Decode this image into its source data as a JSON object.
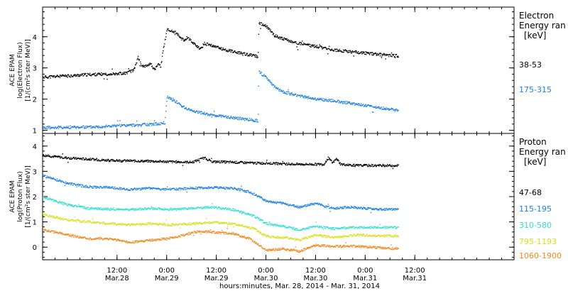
{
  "chart_data": {
    "type": "scatter",
    "x_axis": {
      "label": "hours:minutes, Mar. 28, 2014 - Mar. 31, 2014",
      "range_hours": [
        -6,
        108
      ],
      "ticks": [
        {
          "t": 12,
          "time": "12:00",
          "date": "Mar.28"
        },
        {
          "t": 24,
          "time": "0:00",
          "date": "Mar.29"
        },
        {
          "t": 36,
          "time": "12:00",
          "date": "Mar.29"
        },
        {
          "t": 48,
          "time": "0:00",
          "date": "Mar.30"
        },
        {
          "t": 60,
          "time": "12:00",
          "date": "Mar.30"
        },
        {
          "t": 72,
          "time": "0:00",
          "date": "Mar.31"
        },
        {
          "t": 84,
          "time": "12:00",
          "date": "Mar.31"
        }
      ]
    },
    "panels": [
      {
        "ylabel": [
          "ACE EPAM",
          "log(Electron Flux)",
          "[1/(cm²s ster MeV)]"
        ],
        "ylim": [
          0.9,
          4.95
        ],
        "yticks": [
          "1",
          "2",
          "3",
          "4"
        ],
        "legend_title": [
          "Electron",
          "Energy ran",
          "[keV]"
        ],
        "series": [
          {
            "name": "38-53",
            "color": "#000000",
            "points": [
              [
                -6,
                2.72
              ],
              [
                0,
                2.76
              ],
              [
                5,
                2.8
              ],
              [
                10,
                2.82
              ],
              [
                14,
                2.85
              ],
              [
                16,
                2.95
              ],
              [
                17,
                3.35
              ],
              [
                18,
                3.05
              ],
              [
                19,
                3.1
              ],
              [
                20,
                3.15
              ],
              [
                21,
                2.95
              ],
              [
                22,
                3.15
              ],
              [
                22.5,
                3.05
              ],
              [
                23,
                3.55
              ],
              [
                24,
                4.25
              ],
              [
                26,
                4.15
              ],
              [
                28,
                3.9
              ],
              [
                29,
                4.0
              ],
              [
                30,
                3.85
              ],
              [
                31,
                3.75
              ],
              [
                32,
                3.6
              ],
              [
                33,
                3.8
              ],
              [
                35,
                3.72
              ],
              [
                38,
                3.6
              ],
              [
                42,
                3.48
              ],
              [
                46,
                3.38
              ],
              [
                46.2,
                4.45
              ],
              [
                48,
                4.35
              ],
              [
                50,
                4.05
              ],
              [
                52,
                3.95
              ],
              [
                55,
                3.82
              ],
              [
                60,
                3.7
              ],
              [
                65,
                3.58
              ],
              [
                70,
                3.52
              ],
              [
                75,
                3.45
              ],
              [
                80,
                3.4
              ]
            ]
          },
          {
            "name": "175-315",
            "color": "#1e80e0",
            "points": [
              [
                -6,
                1.1
              ],
              [
                5,
                1.12
              ],
              [
                10,
                1.15
              ],
              [
                20,
                1.2
              ],
              [
                23.5,
                1.25
              ],
              [
                24,
                2.1
              ],
              [
                26,
                1.95
              ],
              [
                28,
                1.75
              ],
              [
                30,
                1.65
              ],
              [
                33,
                1.55
              ],
              [
                36,
                1.48
              ],
              [
                40,
                1.42
              ],
              [
                46,
                1.32
              ],
              [
                46.2,
                2.9
              ],
              [
                48,
                2.7
              ],
              [
                50,
                2.4
              ],
              [
                52,
                2.25
              ],
              [
                55,
                2.15
              ],
              [
                60,
                2.02
              ],
              [
                65,
                1.95
              ],
              [
                70,
                1.85
              ],
              [
                75,
                1.75
              ],
              [
                80,
                1.65
              ]
            ]
          }
        ]
      },
      {
        "ylabel": [
          "ACE EPAM",
          "log(Proton Flux)",
          "[1/(cm²s ster MeV)]"
        ],
        "ylim": [
          -0.5,
          4.5
        ],
        "yticks": [
          "0",
          "1",
          "2",
          "3",
          "4"
        ],
        "legend_title": [
          "Proton",
          "Energy ran",
          "[keV]"
        ],
        "series": [
          {
            "name": "47-68",
            "color": "#000000",
            "points": [
              [
                -6,
                3.65
              ],
              [
                0,
                3.55
              ],
              [
                10,
                3.45
              ],
              [
                20,
                3.42
              ],
              [
                25,
                3.4
              ],
              [
                30,
                3.38
              ],
              [
                33,
                3.55
              ],
              [
                35,
                3.4
              ],
              [
                40,
                3.38
              ],
              [
                45,
                3.35
              ],
              [
                50,
                3.33
              ],
              [
                55,
                3.3
              ],
              [
                62,
                3.3
              ],
              [
                63,
                3.55
              ],
              [
                64,
                3.35
              ],
              [
                65,
                3.52
              ],
              [
                66,
                3.3
              ],
              [
                70,
                3.25
              ],
              [
                80,
                3.25
              ]
            ]
          },
          {
            "name": "115-195",
            "color": "#1e80e0",
            "points": [
              [
                -6,
                2.85
              ],
              [
                0,
                2.55
              ],
              [
                5,
                2.4
              ],
              [
                10,
                2.38
              ],
              [
                15,
                2.3
              ],
              [
                20,
                2.35
              ],
              [
                25,
                2.3
              ],
              [
                30,
                2.35
              ],
              [
                35,
                2.38
              ],
              [
                40,
                2.35
              ],
              [
                44,
                2.2
              ],
              [
                48,
                1.85
              ],
              [
                52,
                1.75
              ],
              [
                56,
                1.6
              ],
              [
                60,
                1.75
              ],
              [
                64,
                1.55
              ],
              [
                68,
                1.6
              ],
              [
                72,
                1.55
              ],
              [
                80,
                1.5
              ]
            ]
          },
          {
            "name": "310-580",
            "color": "#2ee0d0",
            "points": [
              [
                -6,
                2.0
              ],
              [
                0,
                1.7
              ],
              [
                5,
                1.55
              ],
              [
                10,
                1.52
              ],
              [
                15,
                1.5
              ],
              [
                20,
                1.55
              ],
              [
                25,
                1.5
              ],
              [
                30,
                1.55
              ],
              [
                35,
                1.6
              ],
              [
                40,
                1.5
              ],
              [
                45,
                1.25
              ],
              [
                48,
                0.95
              ],
              [
                52,
                0.85
              ],
              [
                56,
                0.7
              ],
              [
                60,
                0.85
              ],
              [
                64,
                0.75
              ],
              [
                70,
                0.8
              ],
              [
                80,
                0.8
              ]
            ]
          },
          {
            "name": "795-1193",
            "color": "#d8e020",
            "points": [
              [
                -6,
                1.3
              ],
              [
                0,
                1.1
              ],
              [
                5,
                1.02
              ],
              [
                10,
                0.95
              ],
              [
                15,
                0.9
              ],
              [
                20,
                0.95
              ],
              [
                25,
                0.9
              ],
              [
                30,
                0.95
              ],
              [
                35,
                1.0
              ],
              [
                40,
                0.95
              ],
              [
                45,
                0.75
              ],
              [
                48,
                0.45
              ],
              [
                52,
                0.4
              ],
              [
                56,
                0.3
              ],
              [
                60,
                0.5
              ],
              [
                64,
                0.4
              ],
              [
                70,
                0.5
              ],
              [
                80,
                0.45
              ]
            ]
          },
          {
            "name": "1060-1900",
            "color": "#f08820",
            "points": [
              [
                -6,
                0.7
              ],
              [
                0,
                0.5
              ],
              [
                5,
                0.35
              ],
              [
                10,
                0.35
              ],
              [
                15,
                0.2
              ],
              [
                20,
                0.3
              ],
              [
                24,
                0.35
              ],
              [
                28,
                0.5
              ],
              [
                32,
                0.65
              ],
              [
                36,
                0.6
              ],
              [
                40,
                0.55
              ],
              [
                44,
                0.35
              ],
              [
                48,
                -0.1
              ],
              [
                52,
                -0.05
              ],
              [
                56,
                -0.15
              ],
              [
                60,
                0.1
              ],
              [
                64,
                0.05
              ],
              [
                70,
                0.05
              ],
              [
                80,
                -0.05
              ]
            ]
          }
        ]
      }
    ]
  }
}
